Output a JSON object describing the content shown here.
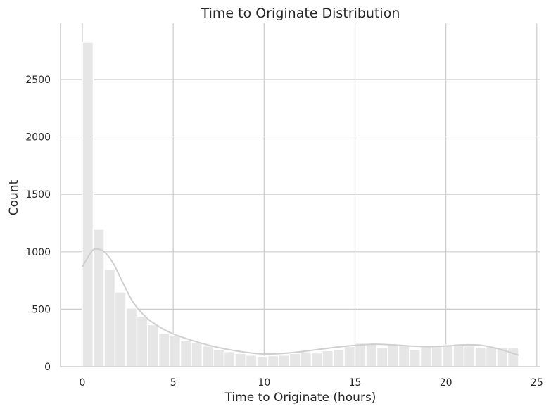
{
  "chart_data": {
    "type": "bar",
    "subtype": "histogram-with-kde",
    "title": "Time to Originate Distribution",
    "xlabel": "Time to Originate (hours)",
    "ylabel": "Count",
    "xlim": [
      -1.2,
      25.2
    ],
    "ylim": [
      0,
      2990
    ],
    "xticks": [
      0,
      5,
      10,
      15,
      20,
      25
    ],
    "yticks": [
      0,
      500,
      1000,
      1500,
      2000,
      2500
    ],
    "grid": true,
    "bin_width": 0.6,
    "bin_start": 0,
    "bar_color": "#e6e6e6",
    "line_color": "#cfcfcf",
    "values": [
      2825,
      1195,
      845,
      650,
      510,
      440,
      365,
      290,
      275,
      225,
      210,
      180,
      150,
      130,
      115,
      100,
      90,
      95,
      100,
      115,
      130,
      120,
      140,
      150,
      175,
      205,
      200,
      170,
      190,
      185,
      150,
      175,
      185,
      190,
      185,
      180,
      170,
      175,
      170,
      165
    ],
    "kde": {
      "x": [
        0,
        0.5,
        0.8,
        1.2,
        1.7,
        2.2,
        2.8,
        3.5,
        4.2,
        5,
        6,
        7,
        8,
        9,
        10,
        11,
        12,
        13,
        14,
        15,
        16,
        17,
        18,
        19,
        20,
        21,
        22,
        23,
        24
      ],
      "y": [
        870,
        1000,
        1025,
        1000,
        900,
        740,
        560,
        430,
        350,
        285,
        230,
        185,
        150,
        125,
        110,
        115,
        130,
        150,
        170,
        185,
        195,
        190,
        180,
        175,
        180,
        190,
        185,
        150,
        100
      ]
    }
  }
}
